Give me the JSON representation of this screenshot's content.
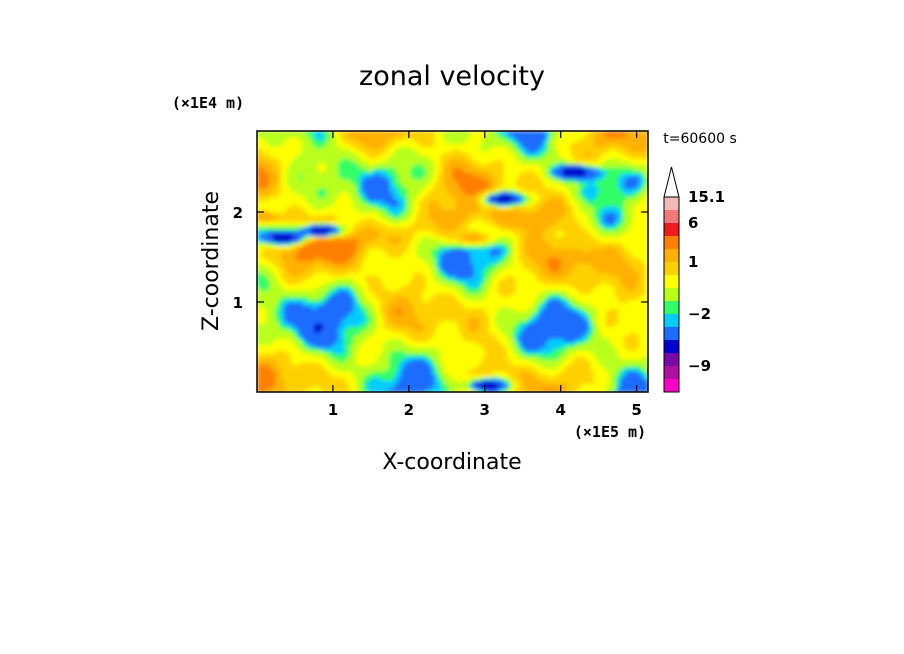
{
  "chart_data": {
    "type": "heatmap",
    "title": "zonal velocity",
    "xlabel": "X-coordinate",
    "ylabel": "Z-coordinate",
    "x_unit": "(×1E5 m)",
    "y_unit": "(×1E4 m)",
    "timestamp": "t=60600 s",
    "xlim": [
      0,
      5.15
    ],
    "ylim": [
      0,
      2.9
    ],
    "x_ticks": [
      {
        "value": 1,
        "label": "1"
      },
      {
        "value": 2,
        "label": "2"
      },
      {
        "value": 3,
        "label": "3"
      },
      {
        "value": 4,
        "label": "4"
      },
      {
        "value": 5,
        "label": "5"
      }
    ],
    "y_ticks": [
      {
        "value": 1,
        "label": "1"
      },
      {
        "value": 2,
        "label": "2"
      }
    ],
    "colorbar": {
      "labels": [
        {
          "value": 15.1,
          "label": "15.1"
        },
        {
          "value": 6,
          "label": "6"
        },
        {
          "value": 1,
          "label": "1"
        },
        {
          "value": -2,
          "label": "−2"
        },
        {
          "value": -9,
          "label": "−9"
        }
      ],
      "levels": [
        {
          "level": 12,
          "color": "#f2b7b7"
        },
        {
          "level": 9,
          "color": "#f07a7a"
        },
        {
          "level": 6,
          "color": "#ee1c1c"
        },
        {
          "level": 3,
          "color": "#ff7f00"
        },
        {
          "level": 2,
          "color": "#ffb000"
        },
        {
          "level": 1,
          "color": "#ffd000"
        },
        {
          "level": 0,
          "color": "#ffff00"
        },
        {
          "level": -1,
          "color": "#b8ff1a"
        },
        {
          "level": -1.5,
          "color": "#33ff66"
        },
        {
          "level": -2,
          "color": "#00ccff"
        },
        {
          "level": -4,
          "color": "#1e6cff"
        },
        {
          "level": -6,
          "color": "#0000cc"
        },
        {
          "level": -8,
          "color": "#7a0aa8"
        },
        {
          "level": -10,
          "color": "#b0109f"
        },
        {
          "level": -12,
          "color": "#ff00c8"
        }
      ],
      "top_extend": "open triangle"
    },
    "features": [
      {
        "x": 0.35,
        "z": 1.72,
        "value": -6
      },
      {
        "x": 3.25,
        "z": 2.15,
        "value": -6
      },
      {
        "x": 4.2,
        "z": 2.45,
        "value": -6
      },
      {
        "x": 0.85,
        "z": 1.8,
        "value": -6
      },
      {
        "x": 3.05,
        "z": 0.08,
        "value": -6
      },
      {
        "x": 0.1,
        "z": 1.95,
        "value": 3
      },
      {
        "x": 2.85,
        "z": 1.72,
        "value": 3
      },
      {
        "x": 4.3,
        "z": 1.5,
        "value": 3
      },
      {
        "x": 3.6,
        "z": 1.9,
        "value": 3
      }
    ]
  }
}
